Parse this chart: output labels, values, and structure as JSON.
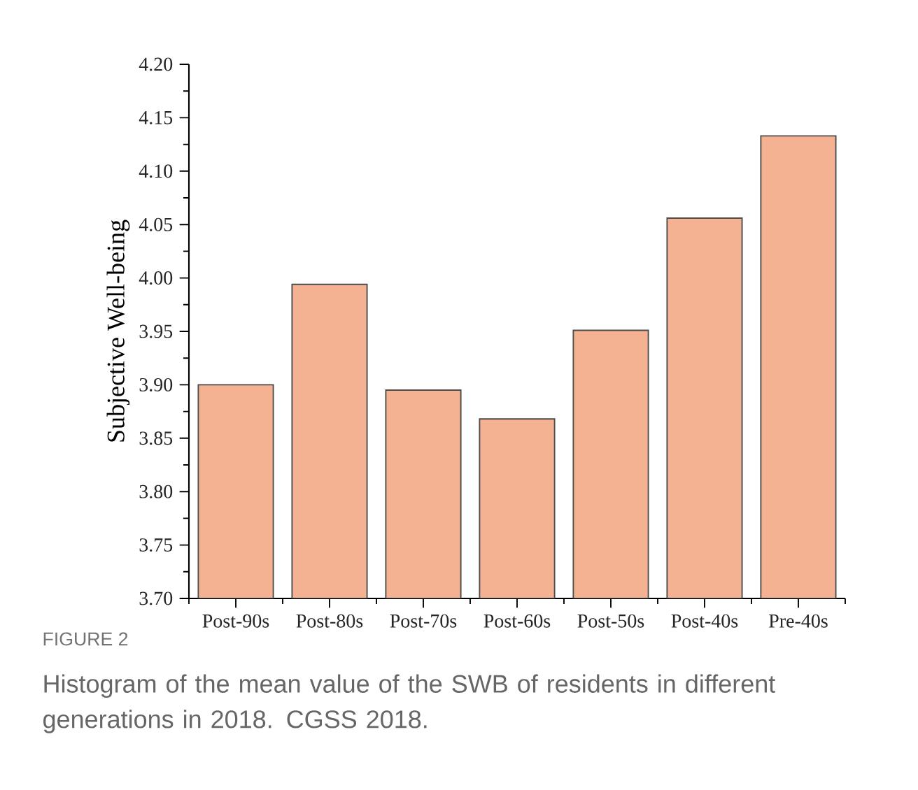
{
  "chart_data": {
    "type": "bar",
    "ylabel": "Subjective Well-being",
    "categories": [
      "Post-90s",
      "Post-80s",
      "Post-70s",
      "Post-60s",
      "Post-50s",
      "Post-40s",
      "Pre-40s"
    ],
    "values": [
      3.9,
      3.994,
      3.895,
      3.868,
      3.951,
      4.056,
      4.133
    ],
    "color": "#f5b293",
    "ylim": [
      3.7,
      4.2
    ],
    "yticks": [
      {
        "value": 3.7,
        "label": "3.70"
      },
      3.75,
      {
        "value": 3.8,
        "label": "3.80"
      },
      3.85,
      {
        "value": 3.9,
        "label": "3.90"
      },
      3.95,
      {
        "value": 4.0,
        "label": "4.00"
      },
      4.05,
      {
        "value": 4.1,
        "label": "4.10"
      },
      4.15,
      {
        "value": 4.2,
        "label": "4.20"
      }
    ],
    "grid": false,
    "annotations": [
      "FIGURE 2",
      "Histogram of the mean value of the SWB of residents in different generations in 2018. CGSS 2018."
    ]
  }
}
